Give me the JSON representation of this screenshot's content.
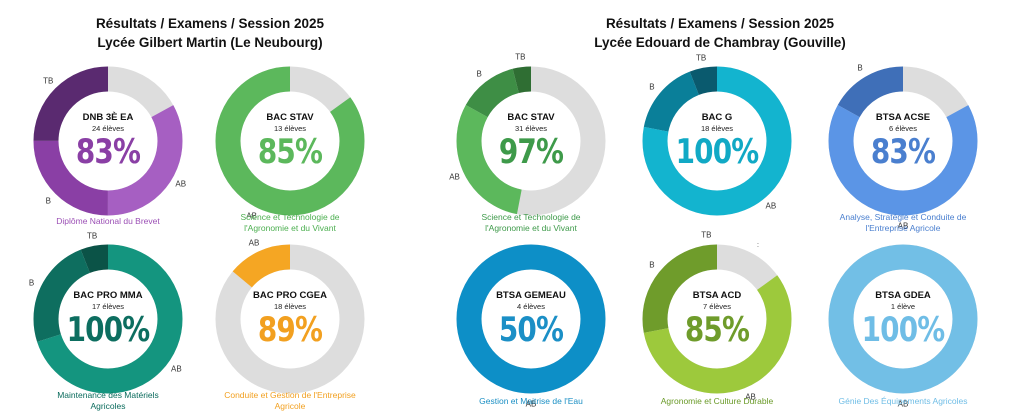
{
  "headings": [
    {
      "line1": "Résultats / Examens / Session 2025",
      "line2": "Lycée Gilbert Martin (Le Neubourg)"
    },
    {
      "line1": "Résultats / Examens / Session 2025",
      "line2": "Lycée Edouard de Chambray (Gouville)"
    }
  ],
  "stray_mark": ":",
  "chart_data": [
    {
      "type": "donut",
      "title": "DNB 3È EA",
      "count": "24 élèves",
      "percent": "83%",
      "caption": "Diplôme National du Brevet",
      "caption_color": "#9b4fb5",
      "pct_color": "#8a3fa5",
      "track": "#dddddd",
      "segments": [
        {
          "label": "TB",
          "value": 25,
          "color": "#5a2a70"
        },
        {
          "label": "B",
          "value": 25,
          "color": "#8a3fa5"
        },
        {
          "label": "AB",
          "value": 33,
          "color": "#a65fc2"
        }
      ]
    },
    {
      "type": "donut",
      "title": "BAC STAV",
      "count": "13 élèves",
      "percent": "85%",
      "caption": "Science  et Technologie de\nl'Agronomie et du Vivant",
      "caption_color": "#4caf50",
      "pct_color": "#5cb85c",
      "track": "#dddddd",
      "segments": [
        {
          "label": "AB",
          "value": 85,
          "color": "#5cb85c"
        }
      ]
    },
    {
      "type": "donut",
      "title": "BAC PRO MMA",
      "count": "17 élèves",
      "percent": "100%",
      "caption": "Maintenance des Matériels\nAgricoles",
      "caption_color": "#0a6b5c",
      "pct_color": "#0d6e60",
      "track": "#dddddd",
      "segments": [
        {
          "label": "TB",
          "value": 6,
          "color": "#0b5347"
        },
        {
          "label": "B",
          "value": 24,
          "color": "#0e6e5f"
        },
        {
          "label": "AB",
          "value": 70,
          "color": "#14957f"
        }
      ]
    },
    {
      "type": "donut",
      "title": "BAC PRO CGEA",
      "count": "18 élèves",
      "percent": "89%",
      "caption": "Conduite et Gestion de l'Entreprise\nAgricole",
      "caption_color": "#f2a020",
      "pct_color": "#f2a020",
      "track": "#dddddd",
      "segments": [
        {
          "label": "AB",
          "value": 14,
          "color": "#f5a623"
        }
      ]
    },
    {
      "type": "donut",
      "title": "BAC STAV",
      "count": "31 élèves",
      "percent": "97%",
      "caption": "Science  et Technologie de\nl'Agronomie et du Vivant",
      "caption_color": "#3e9a4a",
      "pct_color": "#3e9a4a",
      "track": "#dddddd",
      "segments": [
        {
          "label": "TB",
          "value": 4,
          "color": "#2f6e33"
        },
        {
          "label": "B",
          "value": 13,
          "color": "#3e8e45"
        },
        {
          "label": "AB",
          "value": 30,
          "color": "#5cb85c"
        }
      ]
    },
    {
      "type": "donut",
      "title": "BAC G",
      "count": "18 élèves",
      "percent": "100%",
      "caption": "",
      "caption_color": "#0aa6c2",
      "pct_color": "#11a9c5",
      "track": "#dddddd",
      "segments": [
        {
          "label": "TB",
          "value": 6,
          "color": "#0a5a6e"
        },
        {
          "label": "B",
          "value": 16,
          "color": "#0a7f99"
        },
        {
          "label": "AB",
          "value": 78,
          "color": "#13b4cf"
        }
      ]
    },
    {
      "type": "donut",
      "title": "BTSA ACSE",
      "count": "6 élèves",
      "percent": "83%",
      "caption": "Analyse, Stratégie et Conduite de\nl'Entreprise Agricole",
      "caption_color": "#4a7fcf",
      "pct_color": "#4a7fcf",
      "track": "#dddddd",
      "segments": [
        {
          "label": "B",
          "value": 17,
          "color": "#3f6fb8"
        },
        {
          "label": "AB",
          "value": 66,
          "color": "#5b95e6"
        }
      ]
    },
    {
      "type": "donut",
      "title": "BTSA GEMEAU",
      "count": "4 élèves",
      "percent": "50%",
      "caption": "Gestion et Maitrise de l'Eau",
      "caption_color": "#1a8fc4",
      "pct_color": "#1b8fc6",
      "track": "#dddddd",
      "segments": [
        {
          "label": "AB",
          "value": 100,
          "color": "#0d8fc7"
        }
      ]
    },
    {
      "type": "donut",
      "title": "BTSA ACD",
      "count": "7 élèves",
      "percent": "85%",
      "caption": "Agronomie et Culture Durable",
      "caption_color": "#6a9a28",
      "pct_color": "#6f9c2b",
      "track": "#dddddd",
      "segments": [
        {
          "label": "TB",
          "value": 0,
          "color": "#4f7a1f"
        },
        {
          "label": "B",
          "value": 28,
          "color": "#6f9c2b"
        },
        {
          "label": "AB",
          "value": 57,
          "color": "#9dc93c"
        }
      ]
    },
    {
      "type": "donut",
      "title": "BTSA GDEA",
      "count": "1 élève",
      "percent": "100%",
      "caption": "Génie Des Équipements Agricoles",
      "caption_color": "#6fbde6",
      "pct_color": "#6fbde6",
      "track": "#dddddd",
      "segments": [
        {
          "label": "AB",
          "value": 100,
          "color": "#72bfe6"
        }
      ]
    }
  ]
}
